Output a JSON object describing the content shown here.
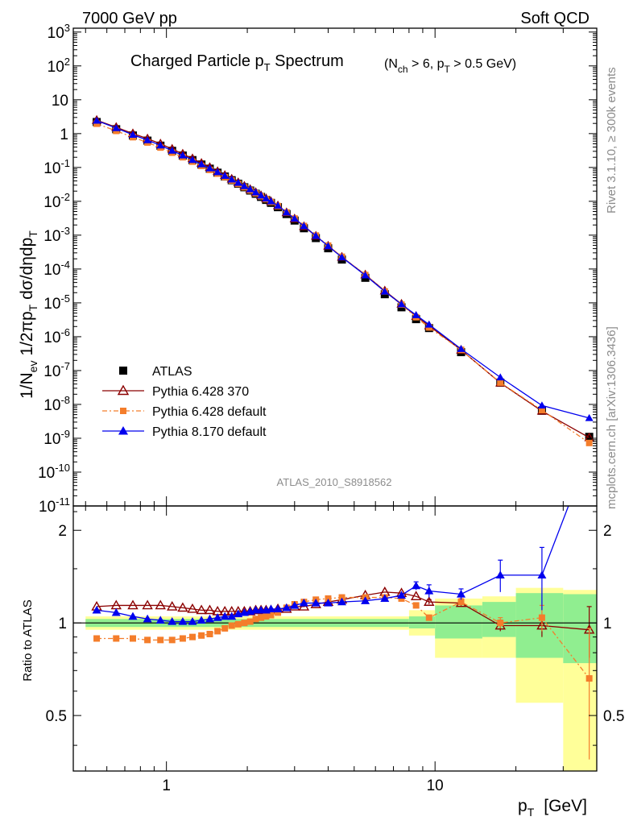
{
  "header": {
    "left": "7000 GeV pp",
    "right": "Soft QCD"
  },
  "side_text": {
    "rivet": "Rivet 3.1.10, ≥ 300k events",
    "mcplots": "mcplots.cern.ch [arXiv:1306.3436]"
  },
  "chart_data": {
    "type": "scatter",
    "title": "Charged Particle pT Spectrum",
    "title_main": "Charged Particle p",
    "title_sub": "T",
    "title_tail": " Spectrum",
    "subtitle": "(Nch > 6, pT > 0.5 GeV)",
    "analysis_tag": "ATLAS_2010_S8918562",
    "xlabel": "pT [GeV]",
    "ylabel": "1/Nev 1/2πpT dσ/dηdpT",
    "ratio_ylabel": "Ratio to ATLAS",
    "xscale": "log",
    "xlim": [
      0.45,
      40
    ],
    "ylim": [
      1e-11,
      1300
    ],
    "ratio_ylim": [
      0.33,
      2.4
    ],
    "x_ticks": [
      "1",
      "10"
    ],
    "y_ticks": [
      "10^-11",
      "10^-10",
      "10^-9",
      "10^-8",
      "10^-7",
      "10^-6",
      "10^-5",
      "10^-4",
      "10^-3",
      "10^-2",
      "10^-1",
      "1",
      "10",
      "10^2",
      "10^3"
    ],
    "ratio_ticks": [
      "0.5",
      "1",
      "2"
    ],
    "legend_position": "lower-left",
    "x": [
      0.55,
      0.65,
      0.75,
      0.85,
      0.95,
      1.05,
      1.15,
      1.25,
      1.35,
      1.45,
      1.55,
      1.65,
      1.75,
      1.85,
      1.95,
      2.05,
      2.15,
      2.25,
      2.35,
      2.45,
      2.6,
      2.8,
      3.0,
      3.25,
      3.6,
      4.0,
      4.5,
      5.5,
      6.5,
      7.5,
      8.5,
      9.5,
      12.5,
      17.5,
      25.0,
      37.5
    ],
    "atlas": [
      2.2,
      1.35,
      0.88,
      0.62,
      0.44,
      0.31,
      0.225,
      0.165,
      0.122,
      0.092,
      0.07,
      0.054,
      0.042,
      0.033,
      0.026,
      0.0208,
      0.0167,
      0.0135,
      0.011,
      0.009,
      0.0067,
      0.0042,
      0.0027,
      0.0016,
      0.00082,
      0.00041,
      0.00019,
      5.5e-05,
      1.8e-05,
      7.4e-06,
      3.3e-06,
      1.8e-06,
      3.5e-07,
      4.4e-08,
      6.5e-09,
      1.1e-09
    ],
    "atlas_band": {
      "x_edges": [
        0.5,
        8,
        10,
        15,
        20,
        30,
        40
      ],
      "yellow": [
        [
          0.95,
          1.05
        ],
        [
          0.91,
          1.1
        ],
        [
          0.77,
          1.2
        ],
        [
          0.77,
          1.22
        ],
        [
          0.55,
          1.3
        ],
        [
          0.33,
          1.28
        ]
      ],
      "green": [
        [
          0.97,
          1.03
        ],
        [
          0.96,
          1.05
        ],
        [
          0.89,
          1.14
        ],
        [
          0.9,
          1.17
        ],
        [
          0.77,
          1.25
        ],
        [
          0.74,
          1.24
        ]
      ]
    },
    "series": [
      {
        "name": "Pythia 6.428 370",
        "color": "#8b0000",
        "marker": "open-triangle",
        "ratio": [
          1.13,
          1.14,
          1.14,
          1.14,
          1.14,
          1.13,
          1.12,
          1.11,
          1.1,
          1.1,
          1.09,
          1.09,
          1.09,
          1.09,
          1.09,
          1.09,
          1.1,
          1.1,
          1.1,
          1.1,
          1.11,
          1.11,
          1.13,
          1.13,
          1.15,
          1.17,
          1.19,
          1.23,
          1.26,
          1.25,
          1.22,
          1.17,
          1.16,
          0.98,
          0.98,
          0.95
        ],
        "ratio_err": [
          0,
          0,
          0,
          0,
          0,
          0,
          0,
          0,
          0,
          0,
          0,
          0,
          0,
          0,
          0,
          0,
          0,
          0,
          0,
          0,
          0,
          0,
          0,
          0,
          0,
          0,
          0,
          0,
          0,
          0,
          0,
          0.02,
          0.03,
          0.04,
          0.08,
          0.18
        ]
      },
      {
        "name": "Pythia 6.428 default",
        "color": "#f47d2b",
        "marker": "square",
        "ratio": [
          0.89,
          0.89,
          0.89,
          0.88,
          0.88,
          0.88,
          0.89,
          0.9,
          0.91,
          0.92,
          0.94,
          0.96,
          0.98,
          0.99,
          1.0,
          1.01,
          1.03,
          1.04,
          1.05,
          1.06,
          1.08,
          1.12,
          1.15,
          1.17,
          1.19,
          1.2,
          1.21,
          1.21,
          1.21,
          1.2,
          1.14,
          1.04,
          1.17,
          1.0,
          1.04,
          0.66
        ],
        "ratio_err": [
          0,
          0,
          0,
          0,
          0,
          0,
          0,
          0,
          0,
          0,
          0,
          0,
          0,
          0,
          0,
          0,
          0,
          0,
          0,
          0,
          0,
          0,
          0,
          0,
          0,
          0,
          0,
          0,
          0,
          0,
          0,
          0.02,
          0.03,
          0.04,
          0.1,
          0.3
        ]
      },
      {
        "name": "Pythia 8.170 default",
        "color": "#0000ee",
        "marker": "filled-triangle",
        "ratio": [
          1.1,
          1.08,
          1.05,
          1.03,
          1.02,
          1.01,
          1.01,
          1.01,
          1.02,
          1.03,
          1.04,
          1.05,
          1.05,
          1.07,
          1.08,
          1.09,
          1.1,
          1.1,
          1.1,
          1.11,
          1.11,
          1.12,
          1.14,
          1.16,
          1.16,
          1.16,
          1.17,
          1.18,
          1.2,
          1.23,
          1.32,
          1.27,
          1.24,
          1.43,
          1.43,
          3.6
        ],
        "ratio_err": [
          0,
          0,
          0,
          0,
          0,
          0,
          0,
          0,
          0,
          0,
          0,
          0,
          0,
          0,
          0,
          0,
          0,
          0,
          0,
          0,
          0,
          0,
          0,
          0,
          0,
          0,
          0,
          0,
          0,
          0,
          0.04,
          0.06,
          0.05,
          0.17,
          0.33,
          0.6
        ]
      }
    ]
  }
}
